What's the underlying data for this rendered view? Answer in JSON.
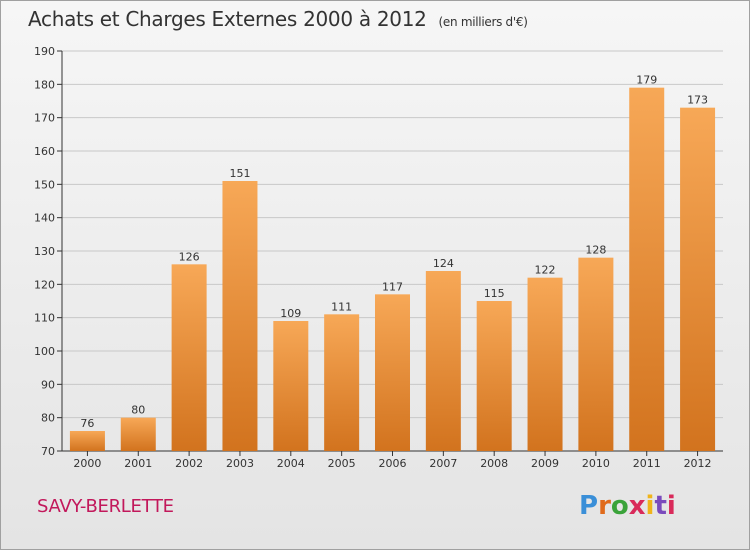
{
  "header": {
    "title": "Achats et Charges Externes 2000 à 2012",
    "subtitle": "(en milliers d'€)"
  },
  "footer": {
    "commune": "SAVY-BERLETTE",
    "logo_letters": [
      "P",
      "r",
      "o",
      "x",
      "i",
      "t",
      "i"
    ]
  },
  "colors": {
    "bar_top": "#f7a857",
    "bar_bottom": "#d2731e",
    "grid": "#c8c8c8",
    "commune": "#c2185b"
  },
  "chart_data": {
    "type": "bar",
    "title": "Achats et Charges Externes 2000 à 2012",
    "subtitle": "(en milliers d'€)",
    "categories": [
      "2000",
      "2001",
      "2002",
      "2003",
      "2004",
      "2005",
      "2006",
      "2007",
      "2008",
      "2009",
      "2010",
      "2011",
      "2012"
    ],
    "values": [
      76,
      80,
      126,
      151,
      109,
      111,
      117,
      124,
      115,
      122,
      128,
      179,
      173
    ],
    "ylim": [
      70,
      190
    ],
    "yticks": [
      70,
      80,
      90,
      100,
      110,
      120,
      130,
      140,
      150,
      160,
      170,
      180,
      190
    ],
    "grid": true,
    "data_labels": true
  }
}
